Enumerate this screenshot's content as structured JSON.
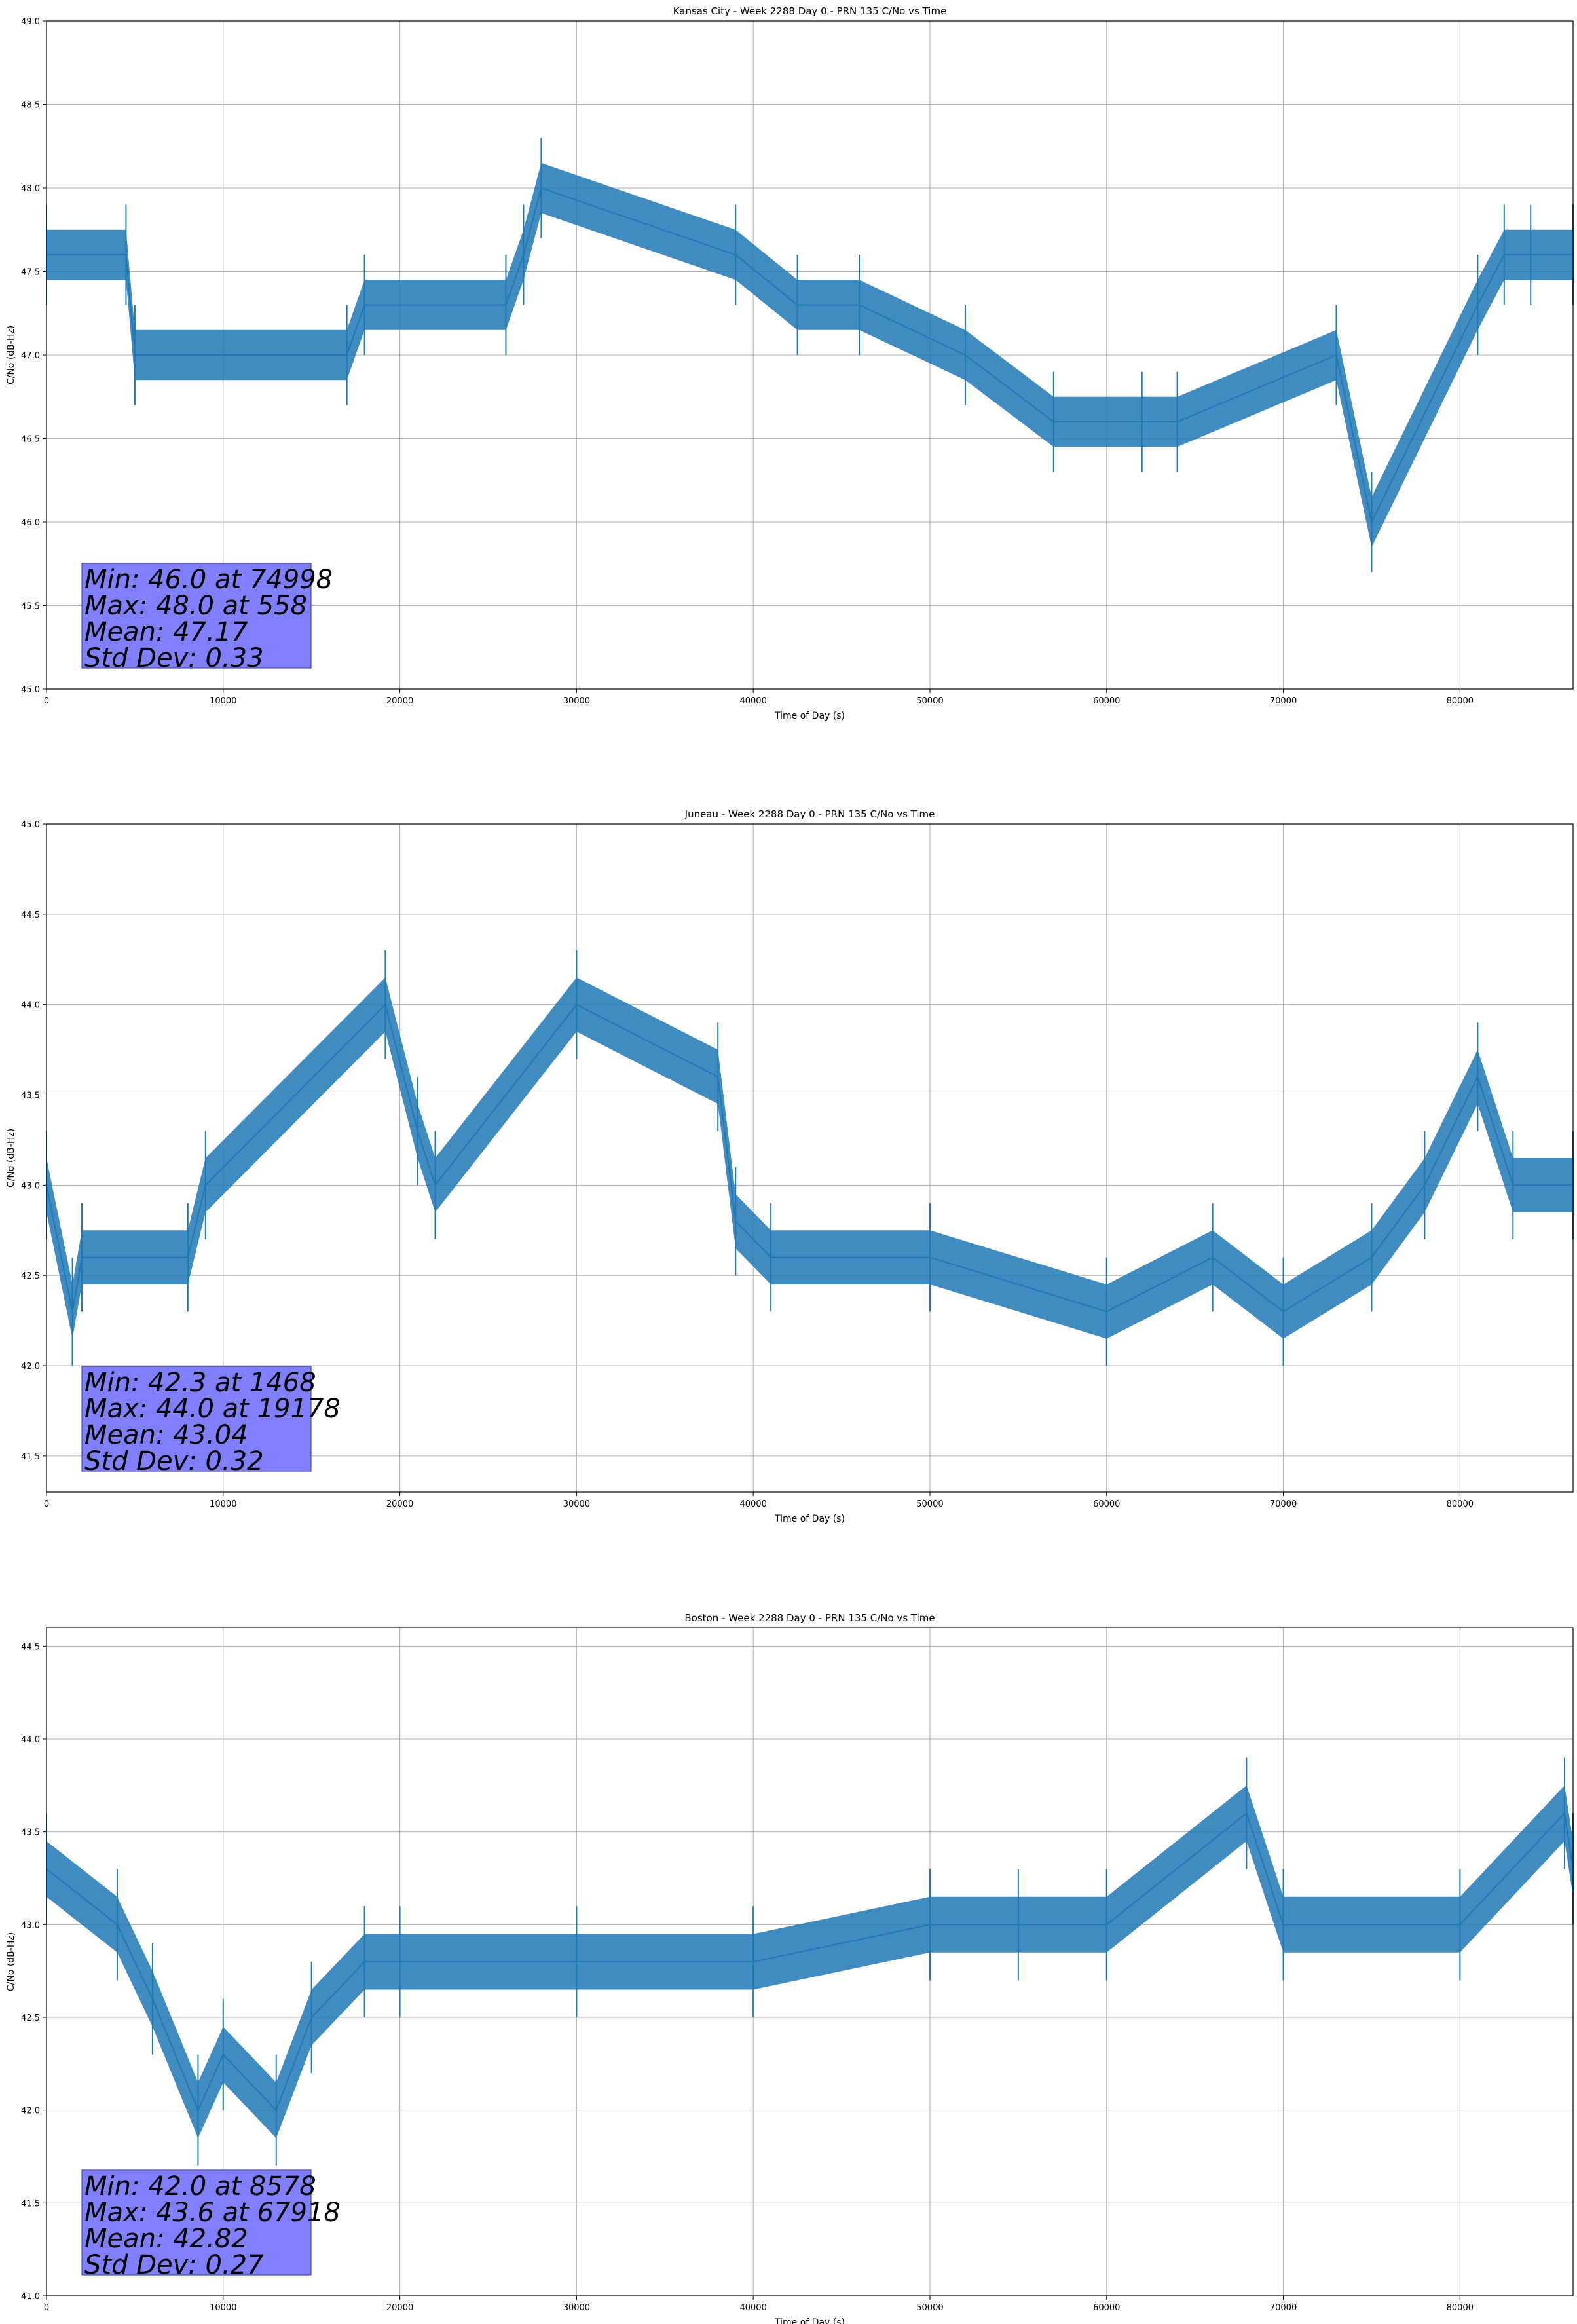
{
  "chart_data": [
    {
      "type": "line",
      "title": "Kansas City - Week 2288 Day 0 - PRN 135 C/No vs Time",
      "xlabel": "Time of Day (s)",
      "ylabel": "C/No (dB-Hz)",
      "xlim": [
        0,
        86400
      ],
      "ylim": [
        45.0,
        49.0
      ],
      "xticks": [
        0,
        10000,
        20000,
        30000,
        40000,
        50000,
        60000,
        70000,
        80000
      ],
      "yticks": [
        "45.0",
        "45.5",
        "46.0",
        "46.5",
        "47.0",
        "47.5",
        "48.0",
        "48.5",
        "49.0"
      ],
      "grid": true,
      "series_color": "#1f77b4",
      "series": [
        {
          "x": [
            0,
            4500,
            5000,
            17000,
            18000,
            26000,
            27000,
            28000,
            39000,
            42500,
            46000,
            52000,
            57000,
            62000,
            64000,
            73000,
            75000,
            81000,
            82500,
            84000,
            86400
          ],
          "y": [
            47.6,
            47.6,
            47.0,
            47.0,
            47.3,
            47.3,
            47.6,
            48.0,
            47.6,
            47.3,
            47.3,
            47.0,
            46.6,
            46.6,
            46.6,
            47.0,
            46.0,
            47.3,
            47.6,
            47.6,
            47.6
          ]
        }
      ],
      "stats": [
        "Min: 46.0 at 74998",
        "Max: 48.0 at 558",
        "Mean: 47.17",
        "Std Dev: 0.33"
      ]
    },
    {
      "type": "line",
      "title": "Juneau - Week 2288 Day 0 - PRN 135 C/No vs Time",
      "xlabel": "Time of Day (s)",
      "ylabel": "C/No (dB-Hz)",
      "xlim": [
        0,
        86400
      ],
      "ylim": [
        41.3,
        45.0
      ],
      "xticks": [
        0,
        10000,
        20000,
        30000,
        40000,
        50000,
        60000,
        70000,
        80000
      ],
      "yticks": [
        "41.5",
        "42.0",
        "42.5",
        "43.0",
        "43.5",
        "44.0",
        "44.5",
        "45.0"
      ],
      "grid": true,
      "series_color": "#1f77b4",
      "series": [
        {
          "x": [
            0,
            1468,
            2000,
            8000,
            9000,
            19178,
            21000,
            22000,
            30000,
            38000,
            39000,
            41000,
            50000,
            60000,
            66000,
            70000,
            75000,
            78000,
            81000,
            83000,
            86400
          ],
          "y": [
            43.0,
            42.3,
            42.6,
            42.6,
            43.0,
            44.0,
            43.3,
            43.0,
            44.0,
            43.6,
            42.8,
            42.6,
            42.6,
            42.3,
            42.6,
            42.3,
            42.6,
            43.0,
            43.6,
            43.0,
            43.0
          ]
        }
      ],
      "stats": [
        "Min: 42.3 at 1468",
        "Max: 44.0 at 19178",
        "Mean: 43.04",
        "Std Dev: 0.32"
      ]
    },
    {
      "type": "line",
      "title": "Boston - Week 2288 Day 0 - PRN 135 C/No vs Time",
      "xlabel": "Time of Day (s)",
      "ylabel": "C/No (dB-Hz)",
      "xlim": [
        0,
        86400
      ],
      "ylim": [
        41.0,
        44.6
      ],
      "xticks": [
        0,
        10000,
        20000,
        30000,
        40000,
        50000,
        60000,
        70000,
        80000
      ],
      "yticks": [
        "41.0",
        "41.5",
        "42.0",
        "42.5",
        "43.0",
        "43.5",
        "44.0",
        "44.5"
      ],
      "grid": true,
      "series_color": "#1f77b4",
      "series": [
        {
          "x": [
            0,
            4000,
            6000,
            8578,
            10000,
            13000,
            15000,
            18000,
            20000,
            30000,
            40000,
            50000,
            55000,
            60000,
            67918,
            70000,
            80000,
            85918,
            86400
          ],
          "y": [
            43.3,
            43.0,
            42.6,
            42.0,
            42.3,
            42.0,
            42.5,
            42.8,
            42.8,
            42.8,
            42.8,
            43.0,
            43.0,
            43.0,
            43.6,
            43.0,
            43.0,
            43.6,
            43.3
          ]
        }
      ],
      "stats": [
        "Min: 42.0 at 8578",
        "Max: 43.6 at 67918",
        "Mean: 42.82",
        "Std Dev: 0.27"
      ]
    }
  ]
}
